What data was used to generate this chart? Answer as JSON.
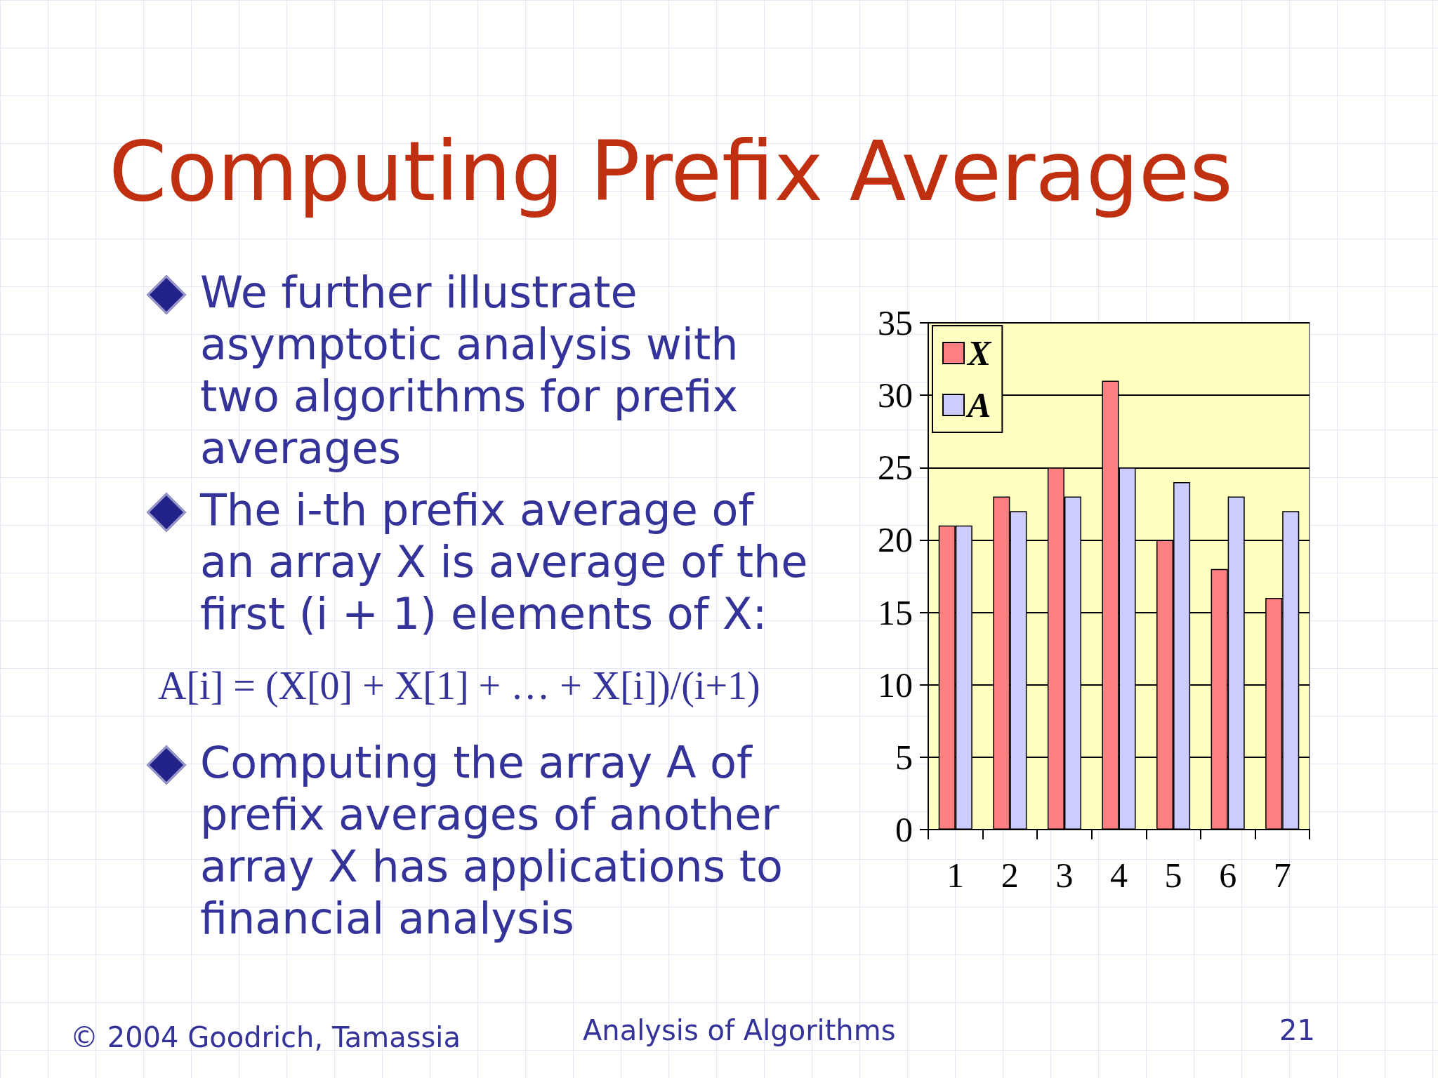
{
  "chart_data": {
    "type": "bar",
    "title": "Computing Prefix Averages",
    "annotations": [
      "We further illustrate asymptotic analysis with two algorithms for prefix averages",
      "The i-th prefix average of an array X is average of the first (i + 1) elements of X:",
      "A[i] = (X[0] + X[1] + … + X[i])/(i+1)",
      "Computing the array A of prefix averages of another array X has applications to financial analysis",
      "© 2004 Goodrich, Tamassia",
      "Analysis of Algorithms",
      "21"
    ],
    "categories": [
      "1",
      "2",
      "3",
      "4",
      "5",
      "6",
      "7"
    ],
    "series": [
      {
        "name": "X",
        "color": "#ff8080",
        "values": [
          21,
          23,
          25,
          31,
          20,
          18,
          16
        ]
      },
      {
        "name": "A",
        "color": "#ccccff",
        "values": [
          21,
          22,
          23,
          25,
          24,
          23,
          22
        ]
      }
    ],
    "ylim": [
      0,
      35
    ],
    "yticks": [
      0,
      5,
      10,
      15,
      20,
      25,
      30,
      35
    ],
    "grid": "y",
    "legend": "top left"
  }
}
